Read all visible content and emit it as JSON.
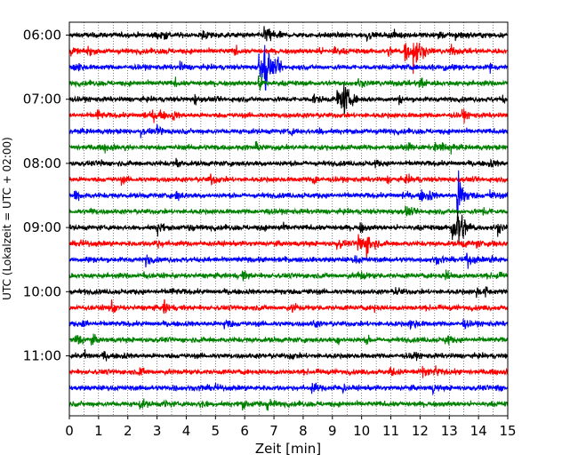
{
  "chart_data": {
    "type": "line",
    "xlabel": "Zeit  [min]",
    "ylabel": "UTC (Lokalzeit = UTC + 02:00)",
    "xlim": [
      0,
      15
    ],
    "x_ticks": [
      0,
      1,
      2,
      3,
      4,
      5,
      6,
      7,
      8,
      9,
      10,
      11,
      12,
      13,
      14,
      15
    ],
    "x_tick_labels": [
      "0",
      "1",
      "2",
      "3",
      "4",
      "5",
      "6",
      "7",
      "8",
      "9",
      "10",
      "11",
      "12",
      "13",
      "14",
      "15"
    ],
    "y_tick_labels": [
      "06:00",
      "07:00",
      "08:00",
      "09:00",
      "10:00",
      "11:00"
    ],
    "minor_x_grid_step_min": 0.5,
    "trace_minutes": 15,
    "trace_count": 24,
    "first_trace_start": "06:00",
    "traces_per_hour": 4,
    "trace_colors": [
      "#000000",
      "#ff0000",
      "#0000ff",
      "#008000"
    ],
    "events": [
      {
        "trace": 0,
        "t_min": 6.7,
        "amp": 1.6
      },
      {
        "trace": 1,
        "t_min": 11.5,
        "amp": 1.3
      },
      {
        "trace": 1,
        "t_min": 11.8,
        "amp": 2.2
      },
      {
        "trace": 2,
        "t_min": 6.5,
        "amp": 1.6
      },
      {
        "trace": 2,
        "t_min": 6.7,
        "amp": 2.5
      },
      {
        "trace": 3,
        "t_min": 6.5,
        "amp": 0.8
      },
      {
        "trace": 4,
        "t_min": 9.2,
        "amp": 1.5
      },
      {
        "trace": 4,
        "t_min": 9.4,
        "amp": 1.4
      },
      {
        "trace": 9,
        "t_min": 4.8,
        "amp": 0.7
      },
      {
        "trace": 10,
        "t_min": 13.3,
        "amp": 2.8
      },
      {
        "trace": 12,
        "t_min": 13.1,
        "amp": 1.8
      },
      {
        "trace": 12,
        "t_min": 13.3,
        "amp": 2.4
      },
      {
        "trace": 13,
        "t_min": 9.9,
        "amp": 1.4
      },
      {
        "trace": 13,
        "t_min": 10.2,
        "amp": 1.1
      },
      {
        "trace": 14,
        "t_min": 13.6,
        "amp": 0.7
      },
      {
        "trace": 15,
        "t_min": 9.9,
        "amp": 0.6
      }
    ]
  }
}
